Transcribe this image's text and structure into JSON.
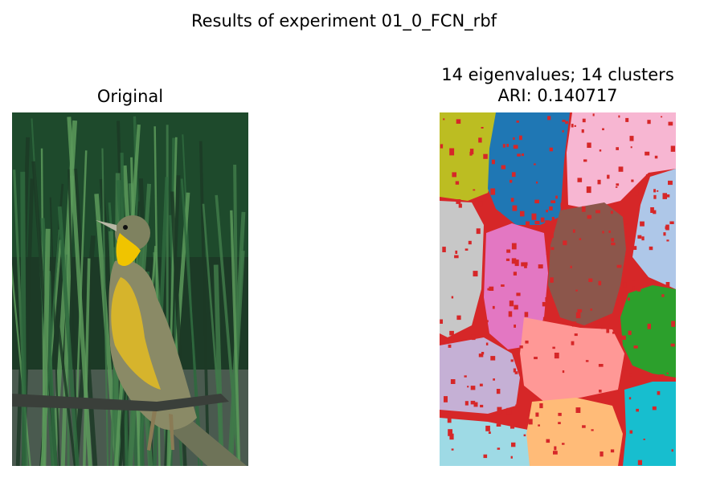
{
  "figure": {
    "suptitle": "Results of experiment 01_0_FCN_rbf"
  },
  "panels": {
    "original": {
      "title": "Original",
      "description_icon": "bird-photo-icon",
      "colors": {
        "grass_dark": "#1c3a26",
        "grass_mid": "#2f6a3e",
        "grass_light": "#5c9a5a",
        "ground": "#4a5a4f",
        "bird_body": "#8a8a66",
        "bird_breast": "#d6b42c",
        "throat": "#f0c400",
        "branch": "#3a3f3a"
      }
    },
    "segmentation": {
      "title_line1": "14 eigenvalues; 14 clusters",
      "title_line2": "ARI: 0.140717",
      "clusters": [
        {
          "color": "#bcbd22"
        },
        {
          "color": "#1f77b4"
        },
        {
          "color": "#f7b6d2"
        },
        {
          "color": "#c7c7c7"
        },
        {
          "color": "#aec7e8"
        },
        {
          "color": "#e377c2"
        },
        {
          "color": "#8c564b"
        },
        {
          "color": "#2ca02c"
        },
        {
          "color": "#c5b0d5"
        },
        {
          "color": "#ff9896"
        },
        {
          "color": "#9edae5"
        },
        {
          "color": "#ffbb78"
        },
        {
          "color": "#17becf"
        },
        {
          "color": "#d62728"
        }
      ]
    }
  }
}
